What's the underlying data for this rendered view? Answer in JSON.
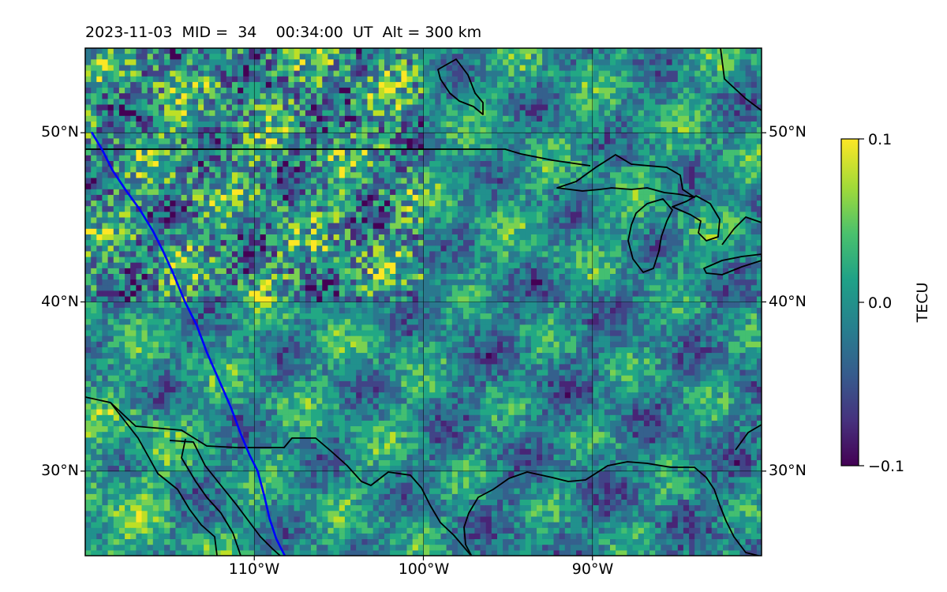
{
  "title": {
    "date": "2023-11-03",
    "mid_label": "MID =",
    "mid_value": "34",
    "time": "00:34:00",
    "time_unit": "UT",
    "alt_label": "Alt =",
    "alt_value": "300 km"
  },
  "map": {
    "lon_range": [
      -120,
      -80
    ],
    "lat_range": [
      25,
      55
    ],
    "gridlines": true,
    "lon_ticks": [
      {
        "value": -110,
        "label": "110°W"
      },
      {
        "value": -100,
        "label": "100°W"
      },
      {
        "value": -90,
        "label": "90°W"
      }
    ],
    "lat_ticks": [
      {
        "value": 50,
        "label": "50°N"
      },
      {
        "value": 40,
        "label": "40°N"
      },
      {
        "value": 30,
        "label": "30°N"
      }
    ],
    "track_color": "#0000ff",
    "satellite_track": [
      [
        -119.6,
        50.0
      ],
      [
        -119.0,
        49.0
      ],
      [
        -118.4,
        47.8
      ],
      [
        -117.6,
        46.6
      ],
      [
        -116.8,
        45.5
      ],
      [
        -116.0,
        44.2
      ],
      [
        -115.4,
        43.0
      ],
      [
        -114.8,
        41.7
      ],
      [
        -114.1,
        40.0
      ],
      [
        -113.4,
        38.6
      ],
      [
        -112.8,
        37.0
      ],
      [
        -112.1,
        35.4
      ],
      [
        -111.4,
        33.8
      ],
      [
        -110.8,
        32.2
      ],
      [
        -110.3,
        31.0
      ],
      [
        -109.8,
        30.0
      ],
      [
        -109.4,
        28.5
      ],
      [
        -109.1,
        27.2
      ],
      [
        -108.7,
        26.0
      ],
      [
        -108.2,
        25.0
      ]
    ]
  },
  "colorbar": {
    "label": "TECU",
    "ticks": [
      "0.1",
      "0.0",
      "−0.1"
    ],
    "min": -0.1,
    "max": 0.1,
    "colormap": "viridis"
  }
}
